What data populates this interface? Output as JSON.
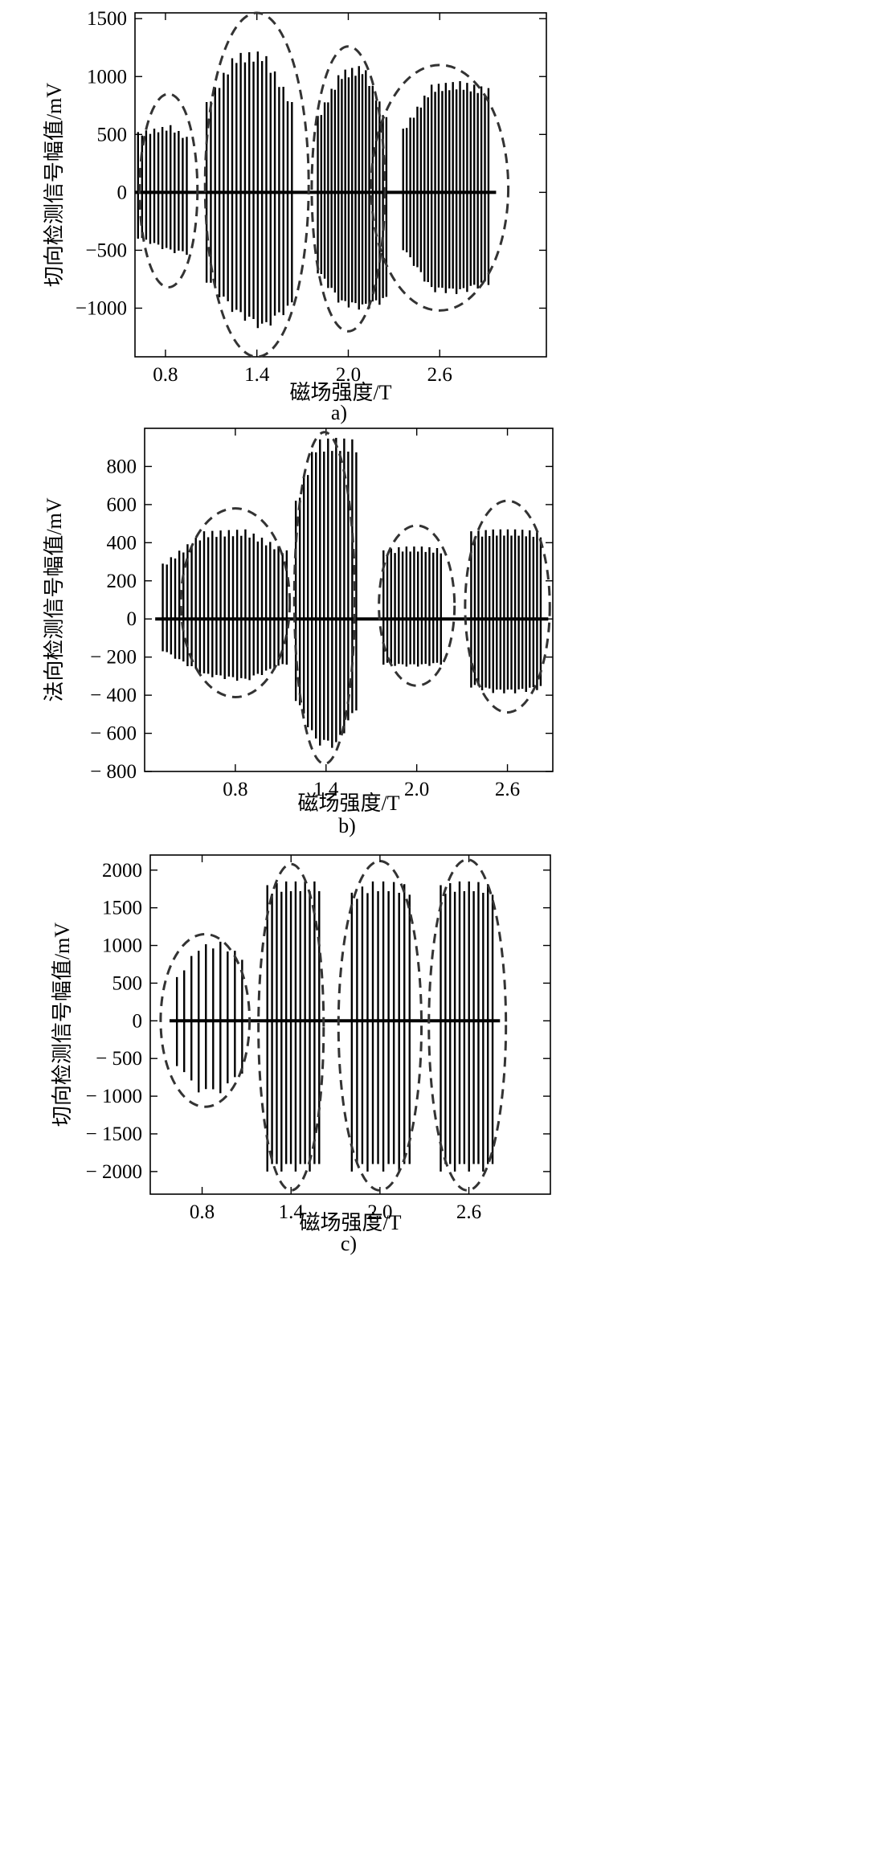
{
  "chart_data": [
    {
      "type": "line",
      "panel_label": "a)",
      "xlabel": "磁场强度/T",
      "ylabel": "切向检测信号幅值/mV",
      "xticks": [
        0.8,
        1.4,
        2.0,
        2.6
      ],
      "yticks": [
        1500,
        1000,
        500,
        0,
        -500,
        -1000
      ],
      "ytick_labels": [
        "1500",
        "1000",
        "500",
        "0",
        "−500",
        "−1000"
      ],
      "xlim": [
        0.6,
        3.3
      ],
      "ylim": [
        -1420,
        1550
      ],
      "grid": false,
      "series": [
        {
          "field_T": 0.8,
          "x_range": [
            0.62,
            0.94
          ],
          "spikes": 13,
          "pos_levels": [
            520,
            550,
            580,
            480
          ],
          "neg_levels": [
            -400,
            -460,
            -520,
            -540
          ],
          "ellipse": {
            "cx": 0.82,
            "rx": 0.19,
            "y_top": 850,
            "y_bottom": -820
          }
        },
        {
          "field_T": 1.4,
          "x_range": [
            1.07,
            1.63
          ],
          "spikes": 21,
          "pos_levels": [
            780,
            1200,
            1220,
            780
          ],
          "neg_levels": [
            -780,
            -1060,
            -1200,
            -1000
          ],
          "ellipse": {
            "cx": 1.4,
            "rx": 0.34,
            "y_top": 1550,
            "y_bottom": -1420
          }
        },
        {
          "field_T": 2.0,
          "x_range": [
            1.8,
            2.25
          ],
          "spikes": 21,
          "pos_levels": [
            660,
            1050,
            1100,
            650
          ],
          "neg_levels": [
            -700,
            -980,
            -1020,
            -950
          ],
          "ellipse": {
            "cx": 2.0,
            "rx": 0.24,
            "y_top": 1260,
            "y_bottom": -1200
          }
        },
        {
          "field_T": 2.6,
          "x_range": [
            2.36,
            2.92
          ],
          "spikes": 25,
          "pos_levels": [
            550,
            930,
            960,
            900
          ],
          "neg_levels": [
            -500,
            -860,
            -880,
            -800
          ],
          "ellipse": {
            "cx": 2.6,
            "rx": 0.45,
            "y_top": 1100,
            "y_bottom": -1020
          }
        }
      ]
    },
    {
      "type": "line",
      "panel_label": "b)",
      "xlabel": "磁场强度/T",
      "ylabel": "法向检测信号幅值/mV",
      "xticks": [
        0.8,
        1.4,
        2.0,
        2.6
      ],
      "yticks": [
        800,
        600,
        400,
        200,
        0,
        -200,
        -400,
        -600,
        -800
      ],
      "ytick_labels": [
        "800",
        "600",
        "400",
        "200",
        "0",
        "− 200",
        "− 400",
        "− 600",
        "− 800"
      ],
      "xlim": [
        0.2,
        2.9
      ],
      "ylim": [
        -800,
        1000
      ],
      "grid": false,
      "series": [
        {
          "field_T": 0.8,
          "x_range": [
            0.32,
            1.14
          ],
          "spikes": 31,
          "pos_levels": [
            290,
            460,
            470,
            360
          ],
          "neg_levels": [
            -170,
            -300,
            -330,
            -240
          ],
          "ellipse": {
            "cx": 0.8,
            "rx": 0.36,
            "y_top": 580,
            "y_bottom": -410
          }
        },
        {
          "field_T": 1.4,
          "x_range": [
            1.2,
            1.6
          ],
          "spikes": 16,
          "pos_levels": [
            620,
            940,
            950,
            940
          ],
          "neg_levels": [
            -430,
            -660,
            -680,
            -480
          ],
          "ellipse": {
            "cx": 1.39,
            "rx": 0.2,
            "y_top": 980,
            "y_bottom": -760
          }
        },
        {
          "field_T": 2.0,
          "x_range": [
            1.78,
            2.16
          ],
          "spikes": 16,
          "pos_levels": [
            360,
            380,
            380,
            370
          ],
          "neg_levels": [
            -240,
            -250,
            -250,
            -240
          ],
          "ellipse": {
            "cx": 2.0,
            "rx": 0.25,
            "y_top": 490,
            "y_bottom": -350
          }
        },
        {
          "field_T": 2.6,
          "x_range": [
            2.36,
            2.82
          ],
          "spikes": 20,
          "pos_levels": [
            460,
            470,
            470,
            460
          ],
          "neg_levels": [
            -360,
            -390,
            -390,
            -370
          ],
          "ellipse": {
            "cx": 2.6,
            "rx": 0.28,
            "y_top": 620,
            "y_bottom": -490
          }
        }
      ]
    },
    {
      "type": "line",
      "panel_label": "c)",
      "xlabel": "磁场强度/T",
      "ylabel": "切向检测信号幅值/mV",
      "xticks": [
        0.8,
        1.4,
        2.0,
        2.6
      ],
      "yticks": [
        2000,
        1500,
        1000,
        500,
        0,
        -500,
        -1000,
        -1500,
        -2000
      ],
      "ytick_labels": [
        "2000",
        "1500",
        "1000",
        "500",
        "0",
        "− 500",
        "− 1000",
        "− 1500",
        "− 2000"
      ],
      "xlim": [
        0.45,
        3.15
      ],
      "ylim": [
        -2300,
        2200
      ],
      "grid": false,
      "series": [
        {
          "field_T": 0.8,
          "x_range": [
            0.63,
            1.07
          ],
          "spikes": 10,
          "pos_levels": [
            580,
            1000,
            1050,
            870
          ],
          "neg_levels": [
            -600,
            -950,
            -960,
            -700
          ],
          "ellipse": {
            "cx": 0.82,
            "rx": 0.3,
            "y_top": 1150,
            "y_bottom": -1140
          }
        },
        {
          "field_T": 1.4,
          "x_range": [
            1.24,
            1.59
          ],
          "spikes": 12,
          "pos_levels": [
            1800,
            1850,
            1850,
            1850
          ],
          "neg_levels": [
            -2000,
            -2000,
            -2000,
            -2000
          ],
          "ellipse": {
            "cx": 1.4,
            "rx": 0.22,
            "y_top": 2080,
            "y_bottom": -2250
          }
        },
        {
          "field_T": 2.0,
          "x_range": [
            1.81,
            2.2
          ],
          "spikes": 12,
          "pos_levels": [
            1700,
            1850,
            1850,
            1800
          ],
          "neg_levels": [
            -2000,
            -2000,
            -2000,
            -2000
          ],
          "ellipse": {
            "cx": 2.0,
            "rx": 0.28,
            "y_top": 2120,
            "y_bottom": -2250
          }
        },
        {
          "field_T": 2.6,
          "x_range": [
            2.41,
            2.76
          ],
          "spikes": 12,
          "pos_levels": [
            1800,
            1850,
            1850,
            1800
          ],
          "neg_levels": [
            -2000,
            -2000,
            -2000,
            -2000
          ],
          "ellipse": {
            "cx": 2.59,
            "rx": 0.26,
            "y_top": 2140,
            "y_bottom": -2250
          }
        }
      ]
    }
  ]
}
